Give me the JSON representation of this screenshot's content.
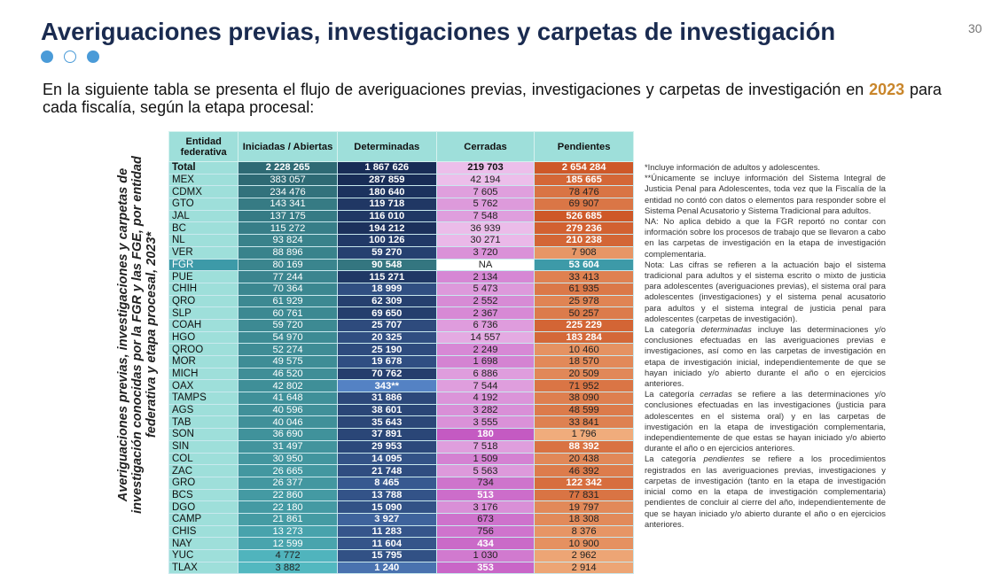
{
  "header": {
    "title": "Averiguaciones previas, investigaciones y carpetas de investigación",
    "page_number": "30"
  },
  "colors": {
    "title": "#1a2b50",
    "dot": "#4a9bd8",
    "year": "#c9862b",
    "header_bg": "#9edfda",
    "iniciadas": "#3a8c95",
    "determinadas": "#23407a",
    "cerradas": "#d27fcf",
    "pendientes": "#e07a3e",
    "fgr_highlight": "#3d9aa8"
  },
  "intro": {
    "text_before": "En la siguiente tabla se presenta el flujo de averiguaciones previas, investigaciones y carpetas de investigación en ",
    "year": "2023",
    "text_after": " para cada fiscalía, según la etapa procesal:"
  },
  "table_caption": {
    "line1": "Averiguaciones previas, investigaciones y carpetas de",
    "line2": "investigación conocidas por la FGR y las FGE, por entidad",
    "line3": "federativa y etapa procesal, 2023*"
  },
  "chart_data": {
    "type": "table",
    "columns": [
      "Entidad federativa",
      "Iniciadas / Abiertas",
      "Determinadas",
      "Cerradas",
      "Pendientes"
    ],
    "rows": [
      [
        "Total",
        "2 228 265",
        "1 867 626",
        "219 703",
        "2 654 284"
      ],
      [
        "MEX",
        "383 057",
        "287 859",
        "42 194",
        "185 665"
      ],
      [
        "CDMX",
        "234 476",
        "180 640",
        "7 605",
        "78 476"
      ],
      [
        "GTO",
        "143 341",
        "119 718",
        "5 762",
        "69 907"
      ],
      [
        "JAL",
        "137 175",
        "116 010",
        "7 548",
        "526 685"
      ],
      [
        "BC",
        "115 272",
        "194 212",
        "36 939",
        "279 236"
      ],
      [
        "NL",
        "93 824",
        "100 126",
        "30 271",
        "210 238"
      ],
      [
        "VER",
        "88 896",
        "59 270",
        "3 720",
        "7 908"
      ],
      [
        "FGR",
        "80 169",
        "90 548",
        "NA",
        "53 604"
      ],
      [
        "PUE",
        "77 244",
        "115 271",
        "2 134",
        "33 413"
      ],
      [
        "CHIH",
        "70 364",
        "18 999",
        "5 473",
        "61 935"
      ],
      [
        "QRO",
        "61 929",
        "62 309",
        "2 552",
        "25 978"
      ],
      [
        "SLP",
        "60 761",
        "69 650",
        "2 367",
        "50 257"
      ],
      [
        "COAH",
        "59 720",
        "25 707",
        "6 736",
        "225 229"
      ],
      [
        "HGO",
        "54 970",
        "20 325",
        "14 557",
        "183 284"
      ],
      [
        "QROO",
        "52 274",
        "25 190",
        "2 249",
        "10 460"
      ],
      [
        "MOR",
        "49 575",
        "19 678",
        "1 698",
        "18 570"
      ],
      [
        "MICH",
        "46 520",
        "70 762",
        "6 886",
        "20 509"
      ],
      [
        "OAX",
        "42 802",
        "343**",
        "7 544",
        "71 952"
      ],
      [
        "TAMPS",
        "41 648",
        "31 886",
        "4 192",
        "38 090"
      ],
      [
        "AGS",
        "40 596",
        "38 601",
        "3 282",
        "48 599"
      ],
      [
        "TAB",
        "40 046",
        "35 643",
        "3 555",
        "33 841"
      ],
      [
        "SON",
        "36 690",
        "37 891",
        "180",
        "1 796"
      ],
      [
        "SIN",
        "31 497",
        "29 953",
        "7 518",
        "88 392"
      ],
      [
        "COL",
        "30 950",
        "14 095",
        "1 509",
        "20 438"
      ],
      [
        "ZAC",
        "26 665",
        "21 748",
        "5 563",
        "46 392"
      ],
      [
        "GRO",
        "26 377",
        "8 465",
        "734",
        "122 342"
      ],
      [
        "BCS",
        "22 860",
        "13 788",
        "513",
        "77 831"
      ],
      [
        "DGO",
        "22 180",
        "15 090",
        "3 176",
        "19 797"
      ],
      [
        "CAMP",
        "21 861",
        "3 927",
        "673",
        "18 308"
      ],
      [
        "CHIS",
        "13 273",
        "11 283",
        "756",
        "8 376"
      ],
      [
        "NAY",
        "12 599",
        "11 604",
        "434",
        "10 900"
      ],
      [
        "YUC",
        "4 772",
        "15 795",
        "1 030",
        "2 962"
      ],
      [
        "TLAX",
        "3 882",
        "1 240",
        "353",
        "2 914"
      ]
    ]
  },
  "notes": {
    "n1": "*Incluye información de adultos y adolescentes.",
    "n2": "**Únicamente se incluye información del Sistema Integral de Justicia Penal para Adolescentes, toda vez que la Fiscalía de la entidad no contó con datos o elementos para responder sobre el Sistema Penal Acusatorio y Sistema Tradicional para adultos.",
    "n3": "NA: No aplica debido a que la FGR reportó no contar con información sobre los procesos de trabajo que se llevaron a cabo en las carpetas de investigación en la etapa de investigación complementaria.",
    "n4": "Nota: Las cifras se refieren a la actuación bajo el sistema tradicional para adultos y el sistema escrito o mixto de justicia para adolescentes (averiguaciones previas), el sistema oral para adolescentes (investigaciones) y el sistema penal acusatorio para adultos y el sistema integral de justicia penal para adolescentes (carpetas de investigación).",
    "n5a": "La categoría ",
    "n5i": "determinadas",
    "n5b": " incluye las determinaciones y/o conclusiones efectuadas en las averiguaciones previas e investigaciones, así como en las carpetas de investigación en etapa de investigación inicial, independientemente de que se hayan iniciado y/o abierto durante el año o en ejercicios anteriores.",
    "n6a": " La categoría ",
    "n6i": "cerradas",
    "n6b": " se refiere a las determinaciones y/o conclusiones efectuadas en las investigaciones (justicia para adolescentes en el sistema oral) y en las carpetas de investigación en la etapa de investigación complementaria, independientemente de que estas se hayan iniciado y/o abierto durante el año o en ejercicios anteriores.",
    "n7a": "La categoría ",
    "n7i": "pendientes",
    "n7b": " se refiere a los procedimientos registrados en las averiguaciones previas, investigaciones y carpetas de investigación (tanto en la etapa de investigación inicial como en la etapa de investigación complementaria) pendientes de concluir al cierre del año, independientemente de que se hayan iniciado y/o abierto durante el año o en ejercicios anteriores."
  }
}
